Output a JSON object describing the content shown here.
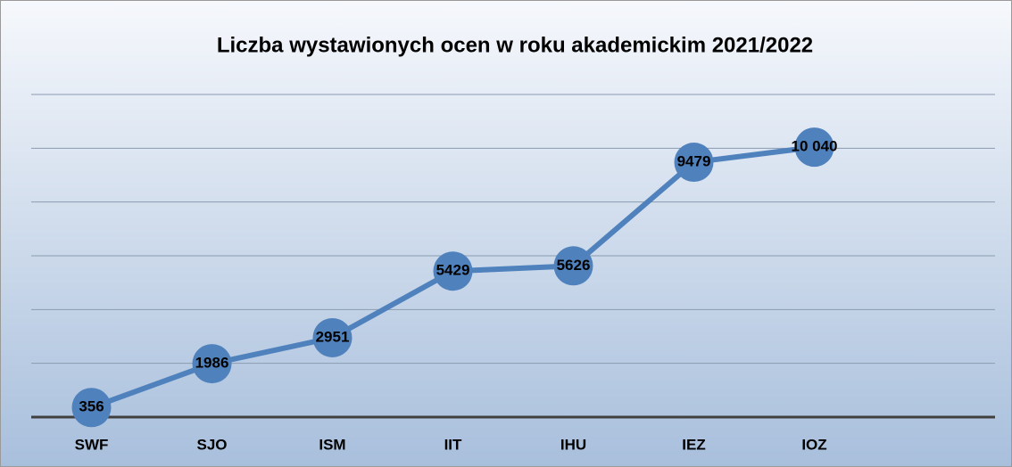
{
  "chart_data": {
    "type": "line",
    "title": "Liczba wystawionych ocen w roku akademickim 2021/2022",
    "categories": [
      "SWF",
      "SJO",
      "ISM",
      "IIT",
      "IHU",
      "IEZ",
      "IOZ",
      null
    ],
    "series": [
      {
        "name": null,
        "color": "#4f81bd",
        "values": [
          356,
          1986,
          2951,
          5429,
          5626,
          9479,
          10040,
          null
        ],
        "value_labels": [
          "356",
          "1986",
          "2951",
          "5429",
          "5626",
          "9479",
          "10 040",
          null
        ]
      }
    ],
    "ylim": [
      0,
      12000
    ],
    "yticks": [
      0,
      2000,
      4000,
      6000,
      8000,
      10000,
      12000
    ],
    "grid": true
  }
}
